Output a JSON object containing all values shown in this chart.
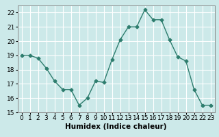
{
  "x": [
    0,
    1,
    2,
    3,
    4,
    5,
    6,
    7,
    8,
    9,
    10,
    11,
    12,
    13,
    14,
    15,
    16,
    17,
    18,
    19,
    20,
    21,
    22,
    23
  ],
  "y": [
    19.0,
    19.0,
    18.8,
    18.1,
    17.2,
    16.6,
    16.6,
    15.5,
    16.0,
    17.2,
    17.1,
    18.7,
    20.1,
    21.0,
    21.0,
    22.2,
    21.5,
    21.5,
    20.1,
    18.9,
    18.6,
    16.6,
    15.5,
    15.5
  ],
  "line_color": "#2e7d6e",
  "marker": "D",
  "markersize": 2.5,
  "linewidth": 1.0,
  "xlabel": "Humidex (Indice chaleur)",
  "xlim": [
    -0.5,
    23.5
  ],
  "ylim": [
    15,
    22.5
  ],
  "yticks": [
    15,
    16,
    17,
    18,
    19,
    20,
    21,
    22
  ],
  "xticks": [
    0,
    1,
    2,
    3,
    4,
    5,
    6,
    7,
    8,
    9,
    10,
    11,
    12,
    13,
    14,
    15,
    16,
    17,
    18,
    19,
    20,
    21,
    22,
    23
  ],
  "bg_color": "#cce9e9",
  "grid_color": "#ffffff",
  "tick_color": "#000000",
  "xlabel_fontsize": 7.5,
  "tick_fontsize": 6.5
}
